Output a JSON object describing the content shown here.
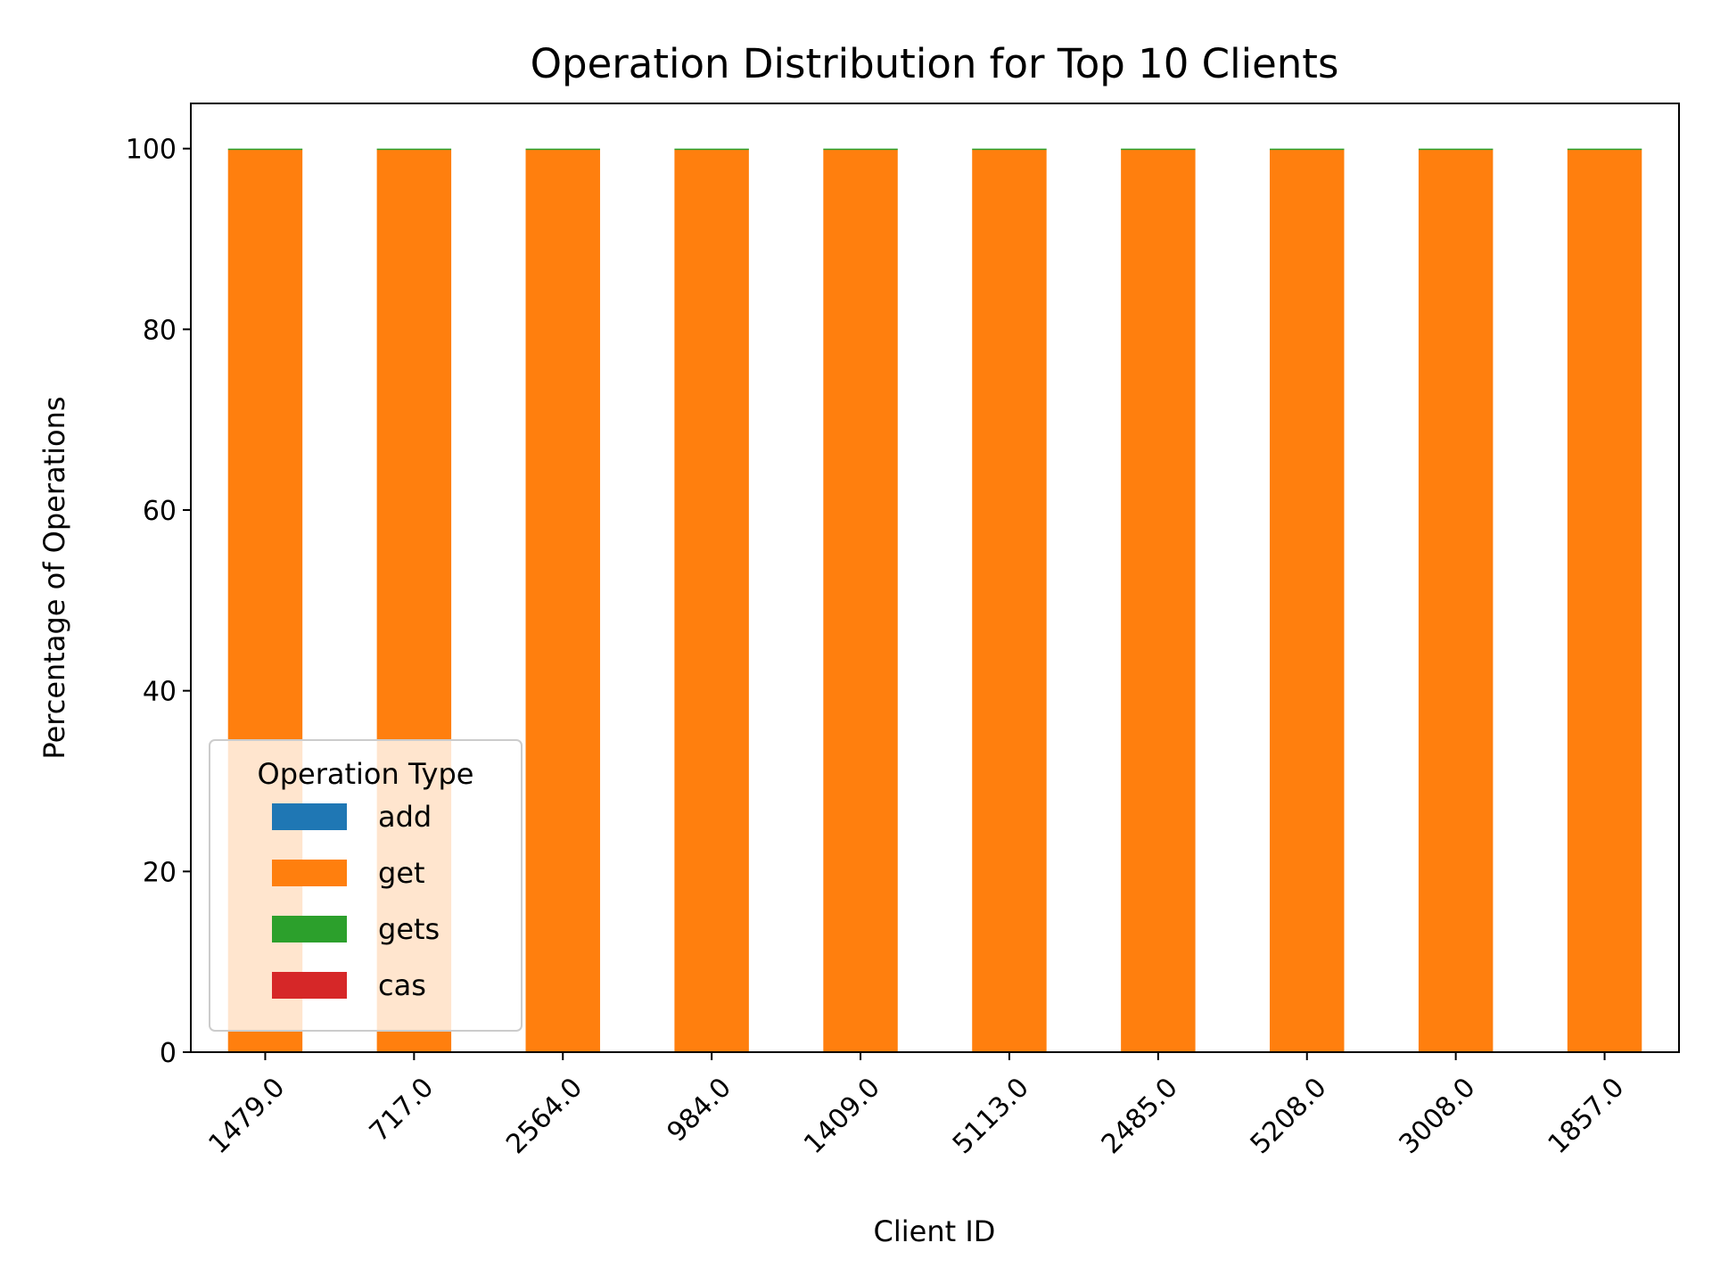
{
  "chart_data": {
    "type": "bar",
    "stacked": true,
    "title": "Operation Distribution for Top 10 Clients",
    "xlabel": "Client ID",
    "ylabel": "Percentage of Operations",
    "categories": [
      "1479.0",
      "717.0",
      "2564.0",
      "984.0",
      "1409.0",
      "5113.0",
      "2485.0",
      "5208.0",
      "3008.0",
      "1857.0"
    ],
    "ylim": [
      0,
      105
    ],
    "yticks": [
      0,
      20,
      40,
      60,
      80,
      100
    ],
    "grid": false,
    "legend": {
      "title": "Operation Type",
      "placement": "lower-left"
    },
    "series": [
      {
        "name": "add",
        "color": "#1f77b4",
        "values": [
          0,
          0,
          0,
          0,
          0,
          0,
          0,
          0,
          0,
          0
        ]
      },
      {
        "name": "get",
        "color": "#ff7f0e",
        "values": [
          99.9,
          99.9,
          99.9,
          99.9,
          99.9,
          99.9,
          99.9,
          99.9,
          99.9,
          99.9
        ]
      },
      {
        "name": "gets",
        "color": "#2ca02c",
        "values": [
          0.1,
          0.1,
          0.1,
          0.1,
          0.1,
          0.1,
          0.1,
          0.1,
          0.1,
          0.1
        ]
      },
      {
        "name": "cas",
        "color": "#d62728",
        "values": [
          0,
          0,
          0,
          0,
          0,
          0,
          0,
          0,
          0,
          0
        ]
      }
    ]
  }
}
